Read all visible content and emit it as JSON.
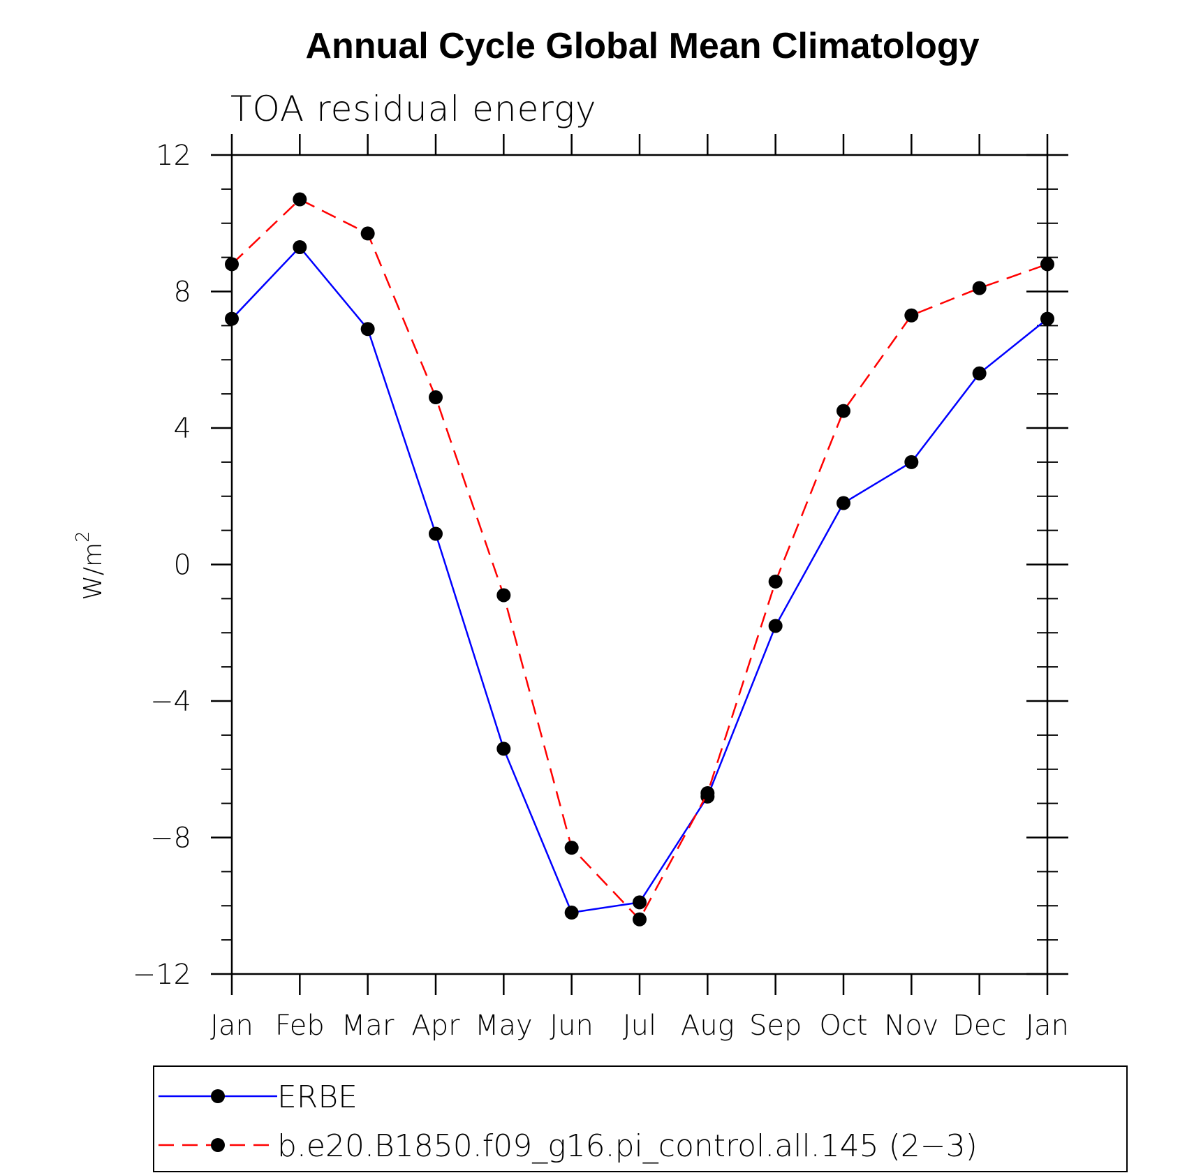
{
  "chart_data": {
    "type": "line",
    "title": "Annual Cycle Global Mean Climatology",
    "subtitle": "TOA residual energy",
    "ylabel_base": "W/m",
    "ylabel_sup": "2",
    "categories": [
      "Jan",
      "Feb",
      "Mar",
      "Apr",
      "May",
      "Jun",
      "Jul",
      "Aug",
      "Sep",
      "Oct",
      "Nov",
      "Dec",
      "Jan"
    ],
    "ylim": [
      -12,
      12
    ],
    "yticks": [
      12,
      8,
      4,
      0,
      -4,
      -8,
      -12
    ],
    "ytick_labels": [
      "12",
      "8",
      "4",
      "0",
      "−4",
      "−8",
      "−12"
    ],
    "y_minor_step": 1,
    "grid": false,
    "series": [
      {
        "name": "ERBE",
        "color": "#0000ff",
        "dash": "solid",
        "values": [
          7.2,
          9.3,
          6.9,
          0.9,
          -5.4,
          -10.2,
          -9.9,
          -6.8,
          -1.8,
          1.8,
          3.0,
          5.6,
          7.2
        ]
      },
      {
        "name": "b.e20.B1850.f09_g16.pi_control.all.145 (2−3)",
        "color": "#ff0000",
        "dash": "dashed",
        "values": [
          8.8,
          10.7,
          9.7,
          4.9,
          -0.9,
          -8.3,
          -10.4,
          -6.7,
          -0.5,
          4.5,
          7.3,
          8.1,
          8.8
        ]
      }
    ],
    "marker_color": "#000000",
    "legend_position": "bottom"
  }
}
